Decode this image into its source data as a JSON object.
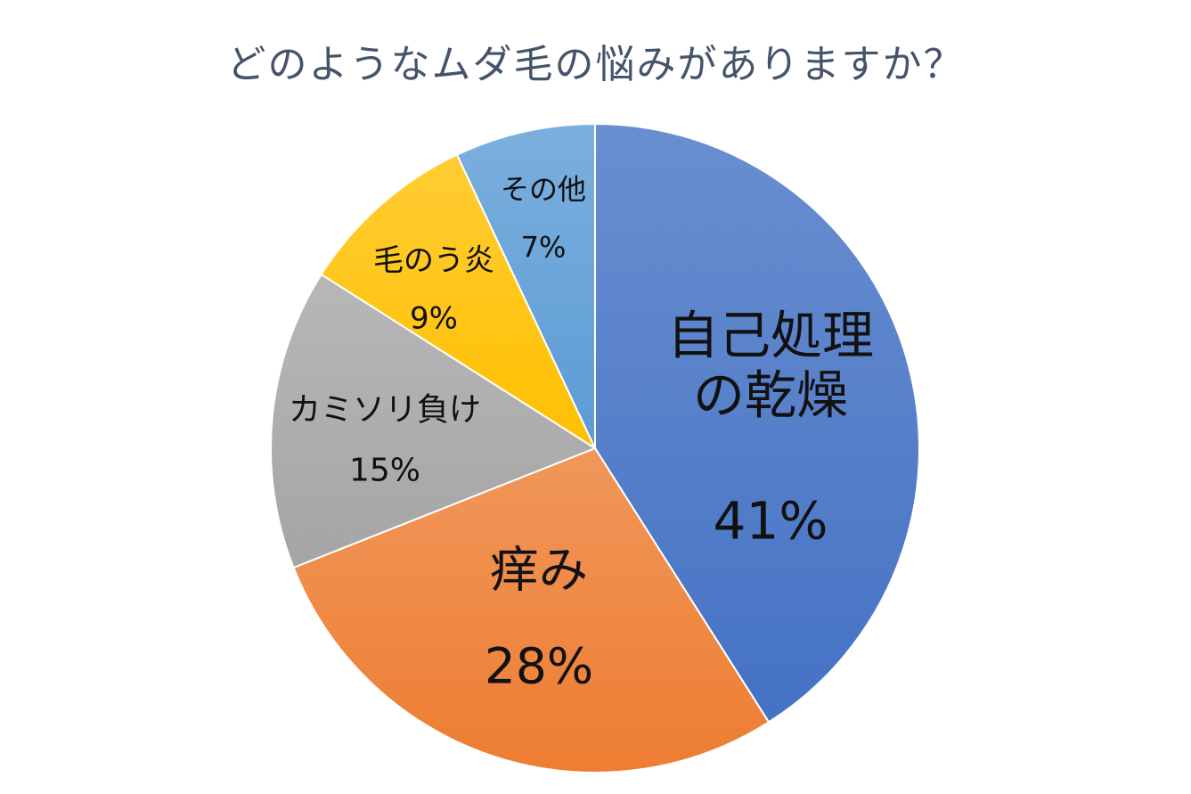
{
  "chart_data": {
    "type": "pie",
    "title": "どのようなムダ毛の悩みがありますか？",
    "categories": [
      "自己処理の乾燥",
      "痒み",
      "カミソリ負け",
      "毛のう炎",
      "その他"
    ],
    "values": [
      41,
      28,
      15,
      9,
      7
    ],
    "value_labels": [
      "41%",
      "28%",
      "15%",
      "9%",
      "7%"
    ],
    "colors": [
      "#4472c4",
      "#ed7d31",
      "#a5a5a5",
      "#ffc000",
      "#5b9bd5"
    ]
  }
}
